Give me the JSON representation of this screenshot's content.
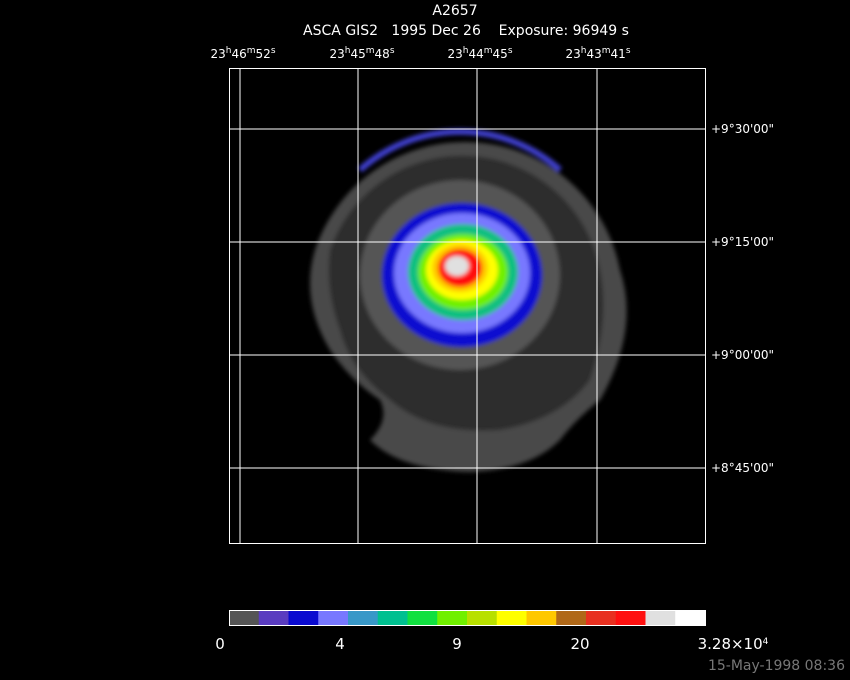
{
  "header": {
    "title": "A2657",
    "subtitle": "ASCA GIS2   1995 Dec 26    Exposure: 96949 s"
  },
  "ra_labels": [
    [
      "23",
      "h",
      "46",
      "m",
      "52",
      "s"
    ],
    [
      "23",
      "h",
      "45",
      "m",
      "48",
      "s"
    ],
    [
      "23",
      "h",
      "44",
      "m",
      "45",
      "s"
    ],
    [
      "23",
      "h",
      "43",
      "m",
      "41",
      "s"
    ]
  ],
  "dec_labels": [
    "+9°30'00\"",
    "+9°15'00\"",
    "+9°00'00\"",
    "+8°45'00\""
  ],
  "colorbar": {
    "colors": [
      "#555555",
      "#5a3cc0",
      "#0a0ad0",
      "#7878ff",
      "#3898c8",
      "#00c090",
      "#10e040",
      "#70f000",
      "#b8e000",
      "#ffff00",
      "#ffc800",
      "#b06818",
      "#e83020",
      "#ff1010",
      "#e0e0e0",
      "#ffffff"
    ],
    "labels": [
      [
        "0"
      ],
      [
        "4"
      ],
      [
        "9"
      ],
      [
        "20"
      ],
      [
        "3.28×10",
        "4"
      ]
    ]
  },
  "footer": {
    "timestamp": "15-May-1998 08:36"
  }
}
